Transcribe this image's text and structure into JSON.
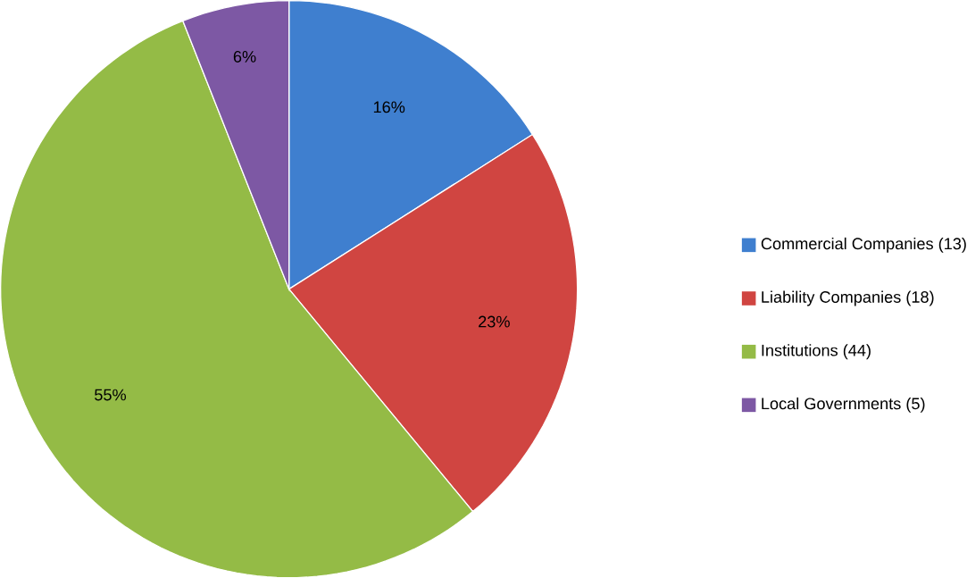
{
  "chart_data": {
    "type": "pie",
    "categories": [
      "Commercial Companies (13)",
      "Liability Companies (18)",
      "Institutions (44)",
      "Local Governments (5)"
    ],
    "values": [
      16,
      23,
      55,
      6
    ],
    "colors": [
      "#3f7fcf",
      "#d04541",
      "#94bb46",
      "#7d58a4"
    ],
    "value_labels": [
      "16%",
      "23%",
      "55%",
      "6%"
    ],
    "legend": "right"
  }
}
